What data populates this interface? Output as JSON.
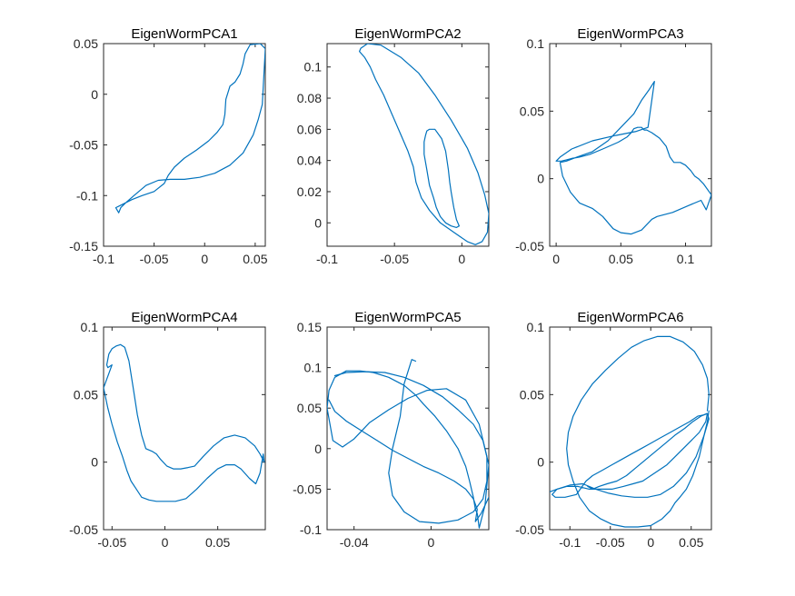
{
  "chart_data": [
    {
      "type": "line",
      "title": "EigenWormPCA1",
      "xlim": [
        -0.1,
        0.06
      ],
      "ylim": [
        -0.15,
        0.05
      ],
      "xticks": [
        -0.1,
        -0.05,
        0,
        0.05
      ],
      "xtick_labels": [
        "-0.1",
        "-0.05",
        "0",
        "0.05"
      ],
      "yticks": [
        -0.15,
        -0.1,
        -0.05,
        0,
        0.05
      ],
      "ytick_labels": [
        "-0.15",
        "-0.1",
        "-0.05",
        "0",
        "0.05"
      ],
      "series": [
        {
          "color": "#0072BD",
          "x": [
            -0.088,
            -0.085,
            -0.083,
            -0.078,
            -0.07,
            -0.058,
            -0.046,
            -0.034,
            -0.02,
            -0.005,
            0.01,
            0.025,
            0.038,
            0.048,
            0.053,
            0.057,
            0.06,
            0.055,
            0.045,
            0.04,
            0.038,
            0.035,
            0.03,
            0.025,
            0.021,
            0.02,
            0.018,
            0.012,
            0.004,
            -0.008,
            -0.02,
            -0.03,
            -0.036,
            -0.04,
            -0.05,
            -0.062,
            -0.072,
            -0.08,
            -0.084,
            -0.088
          ],
          "y": [
            -0.112,
            -0.117,
            -0.112,
            -0.107,
            -0.1,
            -0.09,
            -0.085,
            -0.084,
            -0.084,
            -0.082,
            -0.078,
            -0.07,
            -0.058,
            -0.04,
            -0.025,
            -0.01,
            0.045,
            0.05,
            0.049,
            0.04,
            0.03,
            0.02,
            0.012,
            0.008,
            -0.005,
            -0.02,
            -0.03,
            -0.038,
            -0.046,
            -0.055,
            -0.063,
            -0.072,
            -0.08,
            -0.088,
            -0.096,
            -0.1,
            -0.104,
            -0.108,
            -0.11,
            -0.112
          ]
        }
      ]
    },
    {
      "type": "line",
      "title": "EigenWormPCA2",
      "xlim": [
        -0.1,
        0.02
      ],
      "ylim": [
        -0.015,
        0.115
      ],
      "xticks": [
        -0.1,
        -0.05,
        0
      ],
      "xtick_labels": [
        "-0.1",
        "-0.05",
        "0"
      ],
      "yticks": [
        0,
        0.02,
        0.04,
        0.06,
        0.08,
        0.1
      ],
      "ytick_labels": [
        "0",
        "0.02",
        "0.04",
        "0.06",
        "0.08",
        "0.1"
      ],
      "series": [
        {
          "color": "#0072BD",
          "x": [
            -0.075,
            -0.07,
            -0.06,
            -0.045,
            -0.032,
            -0.02,
            -0.008,
            0.004,
            0.012,
            0.017,
            0.02,
            0.019,
            0.015,
            0.01,
            0.004,
            -0.006,
            -0.016,
            -0.024,
            -0.03,
            -0.034,
            -0.036,
            -0.04,
            -0.046,
            -0.052,
            -0.058,
            -0.064,
            -0.068,
            -0.072,
            -0.076,
            -0.075
          ],
          "y": [
            0.112,
            0.115,
            0.114,
            0.106,
            0.096,
            0.082,
            0.066,
            0.048,
            0.032,
            0.018,
            0.006,
            -0.006,
            -0.012,
            -0.014,
            -0.012,
            -0.006,
            0.0,
            0.008,
            0.016,
            0.026,
            0.036,
            0.046,
            0.058,
            0.07,
            0.082,
            0.092,
            0.1,
            0.106,
            0.11,
            0.112
          ]
        },
        {
          "color": "#0072BD",
          "x": [
            -0.027,
            -0.026,
            -0.024,
            -0.02,
            -0.015,
            -0.012,
            -0.01,
            -0.009,
            -0.008,
            -0.006,
            -0.004,
            -0.002,
            -0.004,
            -0.008,
            -0.012,
            -0.016,
            -0.019,
            -0.021,
            -0.024,
            -0.026,
            -0.028,
            -0.028,
            -0.027
          ],
          "y": [
            0.056,
            0.059,
            0.06,
            0.06,
            0.054,
            0.046,
            0.034,
            0.026,
            0.02,
            0.01,
            0.002,
            -0.002,
            -0.003,
            -0.002,
            0.0,
            0.004,
            0.01,
            0.016,
            0.024,
            0.034,
            0.044,
            0.052,
            0.056
          ]
        }
      ]
    },
    {
      "type": "line",
      "title": "EigenWormPCA3",
      "xlim": [
        -0.005,
        0.12
      ],
      "ylim": [
        -0.05,
        0.1
      ],
      "xticks": [
        0,
        0.05,
        0.1
      ],
      "xtick_labels": [
        "0",
        "0.05",
        "0.1"
      ],
      "yticks": [
        -0.05,
        0,
        0.05,
        0.1
      ],
      "ytick_labels": [
        "-0.05",
        "0",
        "0.05",
        "0.1"
      ],
      "series": [
        {
          "color": "#0072BD",
          "x": [
            0.0,
            0.003,
            0.012,
            0.028,
            0.046,
            0.062,
            0.071,
            0.076,
            0.072,
            0.066,
            0.06,
            0.05,
            0.04,
            0.028,
            0.016,
            0.008,
            0.003,
            0.005,
            0.011,
            0.018,
            0.028,
            0.036,
            0.044,
            0.05,
            0.058,
            0.066,
            0.074,
            0.078,
            0.09,
            0.102,
            0.112,
            0.116,
            0.12,
            0.114,
            0.11,
            0.107,
            0.104,
            0.1,
            0.096,
            0.091,
            0.088,
            0.085,
            0.08,
            0.074,
            0.07,
            0.068,
            0.066,
            0.063,
            0.06,
            0.058,
            0.055,
            0.048,
            0.036,
            0.026,
            0.018,
            0.012,
            0.008,
            0.004,
            0.001,
            0.0
          ],
          "y": [
            0.013,
            0.016,
            0.022,
            0.028,
            0.032,
            0.035,
            0.038,
            0.072,
            0.066,
            0.058,
            0.048,
            0.038,
            0.028,
            0.02,
            0.016,
            0.013,
            0.012,
            0.002,
            -0.01,
            -0.018,
            -0.022,
            -0.028,
            -0.037,
            -0.04,
            -0.041,
            -0.038,
            -0.03,
            -0.028,
            -0.025,
            -0.02,
            -0.016,
            -0.023,
            -0.012,
            -0.004,
            0.0,
            0.002,
            0.006,
            0.01,
            0.012,
            0.012,
            0.016,
            0.024,
            0.03,
            0.034,
            0.036,
            0.036,
            0.038,
            0.038,
            0.037,
            0.034,
            0.031,
            0.027,
            0.022,
            0.018,
            0.016,
            0.015,
            0.014,
            0.013,
            0.013,
            0.013
          ]
        }
      ]
    },
    {
      "type": "line",
      "title": "EigenWormPCA4",
      "xlim": [
        -0.058,
        0.095
      ],
      "ylim": [
        -0.05,
        0.1
      ],
      "xticks": [
        -0.05,
        0,
        0.05
      ],
      "xtick_labels": [
        "-0.05",
        "0",
        "0.05"
      ],
      "yticks": [
        -0.05,
        0,
        0.05,
        0.1
      ],
      "ytick_labels": [
        "-0.05",
        "0",
        "0.05",
        "0.1"
      ],
      "series": [
        {
          "color": "#0072BD",
          "x": [
            -0.058,
            -0.054,
            -0.05,
            -0.045,
            -0.04,
            -0.036,
            -0.032,
            -0.027,
            -0.022,
            -0.015,
            -0.008,
            0.0,
            0.01,
            0.02,
            0.03,
            0.04,
            0.05,
            0.058,
            0.066,
            0.072,
            0.08,
            0.086,
            0.09,
            0.093,
            0.094,
            0.09,
            0.085,
            0.076,
            0.066,
            0.056,
            0.046,
            0.036,
            0.028,
            0.022,
            0.015,
            0.008,
            0.002,
            -0.004,
            -0.008,
            -0.012,
            -0.018,
            -0.022,
            -0.026,
            -0.03,
            -0.034,
            -0.038,
            -0.042,
            -0.046,
            -0.05,
            -0.053,
            -0.055,
            -0.054,
            -0.05,
            -0.058
          ],
          "y": [
            0.055,
            0.04,
            0.028,
            0.015,
            0.004,
            -0.006,
            -0.014,
            -0.02,
            -0.026,
            -0.028,
            -0.029,
            -0.029,
            -0.029,
            -0.027,
            -0.02,
            -0.012,
            -0.005,
            -0.002,
            -0.002,
            -0.005,
            -0.012,
            -0.016,
            -0.008,
            0.006,
            0.0,
            0.006,
            0.012,
            0.018,
            0.02,
            0.018,
            0.012,
            0.004,
            -0.003,
            -0.004,
            -0.005,
            -0.005,
            -0.003,
            0.002,
            0.006,
            0.008,
            0.01,
            0.02,
            0.035,
            0.055,
            0.075,
            0.085,
            0.087,
            0.086,
            0.084,
            0.08,
            0.072,
            0.07,
            0.072,
            0.055
          ]
        }
      ]
    },
    {
      "type": "line",
      "title": "EigenWormPCA5",
      "xlim": [
        -0.054,
        0.03
      ],
      "ylim": [
        -0.1,
        0.15
      ],
      "xticks": [
        -0.04,
        0
      ],
      "xtick_labels": [
        "-0.04",
        "0"
      ],
      "yticks": [
        -0.1,
        -0.05,
        0,
        0.05,
        0.1,
        0.15
      ],
      "ytick_labels": [
        "-0.1",
        "-0.05",
        "0",
        "0.05",
        "0.1",
        "0.15"
      ],
      "series": [
        {
          "color": "#0072BD",
          "x": [
            -0.054,
            -0.053,
            -0.05,
            -0.044,
            -0.037,
            -0.03,
            -0.022,
            -0.014,
            -0.008,
            -0.004,
            0.002,
            0.008,
            0.014,
            0.018,
            0.02,
            0.022,
            0.023,
            0.024,
            0.025,
            0.028,
            0.03,
            0.025,
            0.018,
            0.008,
            -0.002,
            -0.012,
            -0.022,
            -0.032,
            -0.04,
            -0.046,
            -0.051,
            -0.054
          ],
          "y": [
            0.05,
            0.072,
            0.088,
            0.096,
            0.096,
            0.094,
            0.088,
            0.078,
            0.066,
            0.055,
            0.04,
            0.022,
            0.0,
            -0.022,
            -0.04,
            -0.06,
            -0.075,
            -0.08,
            -0.098,
            -0.07,
            -0.02,
            0.03,
            0.06,
            0.074,
            0.072,
            0.062,
            0.048,
            0.032,
            0.012,
            0.002,
            0.01,
            0.05
          ]
        },
        {
          "color": "#0072BD",
          "x": [
            -0.05,
            -0.044,
            -0.034,
            -0.024,
            -0.014,
            -0.004,
            0.006,
            0.014,
            0.022,
            0.027,
            0.029,
            0.029,
            0.027,
            0.022,
            0.014,
            0.004,
            -0.006,
            -0.014,
            -0.02,
            -0.022,
            -0.02,
            -0.016,
            -0.014,
            -0.01,
            -0.008
          ],
          "y": [
            0.09,
            0.094,
            0.095,
            0.094,
            0.088,
            0.078,
            0.064,
            0.048,
            0.03,
            0.01,
            -0.01,
            -0.04,
            -0.062,
            -0.078,
            -0.088,
            -0.092,
            -0.09,
            -0.078,
            -0.058,
            -0.03,
            0.0,
            0.04,
            0.08,
            0.11,
            0.108
          ]
        },
        {
          "color": "#0072BD",
          "x": [
            -0.053,
            -0.05,
            -0.044,
            -0.036,
            -0.028,
            -0.02,
            -0.012,
            -0.004,
            0.004,
            0.012,
            0.018,
            0.022,
            0.024,
            0.023,
            0.026,
            0.03
          ],
          "y": [
            0.06,
            0.046,
            0.034,
            0.022,
            0.01,
            -0.002,
            -0.012,
            -0.022,
            -0.03,
            -0.04,
            -0.05,
            -0.062,
            -0.075,
            -0.09,
            -0.08,
            -0.06
          ]
        }
      ]
    },
    {
      "type": "line",
      "title": "EigenWormPCA6",
      "xlim": [
        -0.125,
        0.075
      ],
      "ylim": [
        -0.05,
        0.1
      ],
      "xticks": [
        -0.1,
        -0.05,
        0,
        0.05
      ],
      "xtick_labels": [
        "-0.1",
        "-0.05",
        "0",
        "0.05"
      ],
      "yticks": [
        -0.05,
        0,
        0.05,
        0.1
      ],
      "ytick_labels": [
        "-0.05",
        "0",
        "0.05",
        "0.1"
      ],
      "series": [
        {
          "color": "#0072BD",
          "x": [
            0.07,
            0.072,
            0.07,
            0.064,
            0.054,
            0.04,
            0.024,
            0.008,
            -0.008,
            -0.024,
            -0.04,
            -0.056,
            -0.072,
            -0.086,
            -0.096,
            -0.102,
            -0.104,
            -0.102,
            -0.096,
            -0.088,
            -0.076,
            -0.062,
            -0.048,
            -0.032,
            -0.016,
            0.0,
            0.014,
            0.024,
            0.03,
            0.036,
            0.044,
            0.052,
            0.06,
            0.066,
            0.07,
            0.072
          ],
          "y": [
            0.038,
            0.05,
            0.062,
            0.072,
            0.082,
            0.089,
            0.093,
            0.093,
            0.09,
            0.085,
            0.077,
            0.068,
            0.058,
            0.046,
            0.034,
            0.022,
            0.01,
            -0.002,
            -0.014,
            -0.026,
            -0.036,
            -0.042,
            -0.046,
            -0.048,
            -0.048,
            -0.047,
            -0.042,
            -0.036,
            -0.03,
            -0.026,
            -0.02,
            -0.01,
            0.004,
            0.02,
            0.03,
            0.038
          ]
        },
        {
          "color": "#0072BD",
          "x": [
            -0.125,
            -0.116,
            -0.1,
            -0.084,
            -0.068,
            -0.052,
            -0.036,
            -0.02,
            -0.004,
            0.012,
            0.028,
            0.044,
            0.056,
            0.066,
            0.072,
            0.07,
            0.062,
            0.052,
            0.042,
            0.03,
            0.018,
            0.006,
            -0.006,
            -0.018,
            -0.03,
            -0.042,
            -0.054,
            -0.064,
            -0.072,
            -0.078
          ],
          "y": [
            -0.022,
            -0.02,
            -0.017,
            -0.016,
            -0.02,
            -0.023,
            -0.025,
            -0.026,
            -0.026,
            -0.024,
            -0.018,
            -0.008,
            0.004,
            0.02,
            0.032,
            0.036,
            0.034,
            0.03,
            0.025,
            0.02,
            0.014,
            0.008,
            0.002,
            -0.004,
            -0.01,
            -0.014,
            -0.016,
            -0.018,
            -0.02,
            -0.018
          ]
        },
        {
          "color": "#0072BD",
          "x": [
            -0.08,
            -0.072,
            -0.06,
            -0.048,
            -0.036,
            -0.024,
            -0.012,
            0.0,
            0.012,
            0.024,
            0.036,
            0.048,
            0.058,
            0.066,
            0.07,
            0.068,
            0.06,
            0.05,
            0.04,
            0.03,
            0.02,
            0.01,
            0.0,
            -0.01,
            -0.022,
            -0.034,
            -0.048,
            -0.062,
            -0.076,
            -0.09,
            -0.104,
            -0.116,
            -0.122,
            -0.118,
            -0.106,
            -0.092,
            -0.08
          ],
          "y": [
            -0.014,
            -0.01,
            -0.006,
            -0.002,
            0.002,
            0.006,
            0.01,
            0.014,
            0.018,
            0.022,
            0.026,
            0.03,
            0.034,
            0.035,
            0.036,
            0.03,
            0.022,
            0.016,
            0.01,
            0.004,
            -0.002,
            -0.006,
            -0.01,
            -0.014,
            -0.016,
            -0.018,
            -0.02,
            -0.02,
            -0.02,
            -0.018,
            -0.018,
            -0.02,
            -0.024,
            -0.026,
            -0.026,
            -0.024,
            -0.014
          ]
        }
      ]
    }
  ]
}
